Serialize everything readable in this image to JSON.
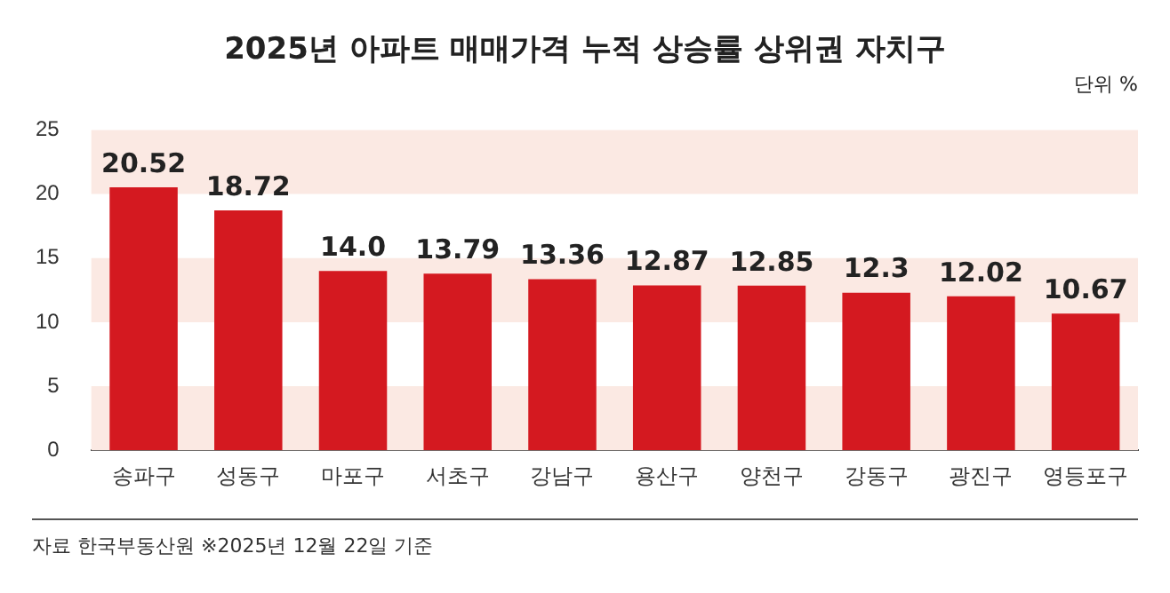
{
  "chart_data": {
    "type": "bar",
    "title": "2025년 아파트 매매가격 누적 상승률 상위권 자치구",
    "categories": [
      "송파구",
      "성동구",
      "마포구",
      "서초구",
      "강남구",
      "용산구",
      "양천구",
      "강동구",
      "광진구",
      "영등포구"
    ],
    "values": [
      20.52,
      18.72,
      14.0,
      13.79,
      13.36,
      12.87,
      12.85,
      12.3,
      12.02,
      10.67
    ],
    "value_labels": [
      "20.52",
      "18.72",
      "14.0",
      "13.79",
      "13.36",
      "12.87",
      "12.85",
      "12.3",
      "12.02",
      "10.67"
    ],
    "color": "#d41920",
    "ylim": [
      0,
      25
    ],
    "yticks": [
      0,
      5,
      10,
      15,
      20,
      25
    ],
    "grid": false,
    "legend": false,
    "bands": [
      {
        "axis": "y",
        "from": 0,
        "to": 5,
        "color": "#fbe9e3"
      },
      {
        "axis": "y",
        "from": 10,
        "to": 15,
        "color": "#fbe9e3"
      },
      {
        "axis": "y",
        "from": 20,
        "to": 25,
        "color": "#fbe9e3"
      }
    ],
    "annotations": [
      "단위 %",
      "자료 한국부동산원 ※2025년 12월 22일 기준"
    ]
  }
}
